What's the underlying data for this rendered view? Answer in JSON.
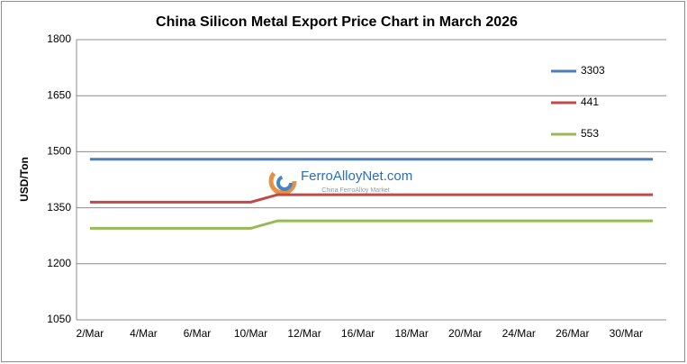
{
  "chart_data": {
    "type": "line",
    "title": "China Silicon Metal Export Price Chart in March 2026",
    "y_label": "USD/Ton",
    "watermark": "FerroAlloyNet.com",
    "watermark_sub": "China FerroAlloy Market",
    "categories": [
      "2/Mar",
      null,
      "4/Mar",
      null,
      "6/Mar",
      null,
      "10/Mar",
      null,
      "12/Mar",
      null,
      "16/Mar",
      null,
      "18/Mar",
      null,
      "20/Mar",
      null,
      "24/Mar",
      null,
      "26/Mar",
      null,
      "30/Mar",
      null
    ],
    "series": [
      {
        "name": "3303",
        "color": "#4a7ebb",
        "values": [
          1480,
          1480,
          1480,
          1480,
          1480,
          1480,
          1480,
          1480,
          1480,
          1480,
          1480,
          1480,
          1480,
          1480,
          1480,
          1480,
          1480,
          1480,
          1480,
          1480,
          1480,
          1480
        ]
      },
      {
        "name": "441",
        "color": "#be4b48",
        "values": [
          1365,
          1365,
          1365,
          1365,
          1365,
          1365,
          1365,
          1385,
          1385,
          1385,
          1385,
          1385,
          1385,
          1385,
          1385,
          1385,
          1385,
          1385,
          1385,
          1385,
          1385,
          1385
        ]
      },
      {
        "name": "553",
        "color": "#98b954",
        "values": [
          1295,
          1295,
          1295,
          1295,
          1295,
          1295,
          1295,
          1315,
          1315,
          1315,
          1315,
          1315,
          1315,
          1315,
          1315,
          1315,
          1315,
          1315,
          1315,
          1315,
          1315,
          1315
        ]
      }
    ],
    "ylim": [
      1050,
      1800
    ],
    "yticks": [
      1050,
      1200,
      1350,
      1500,
      1650,
      1800
    ],
    "grid": true,
    "legend": "right"
  }
}
